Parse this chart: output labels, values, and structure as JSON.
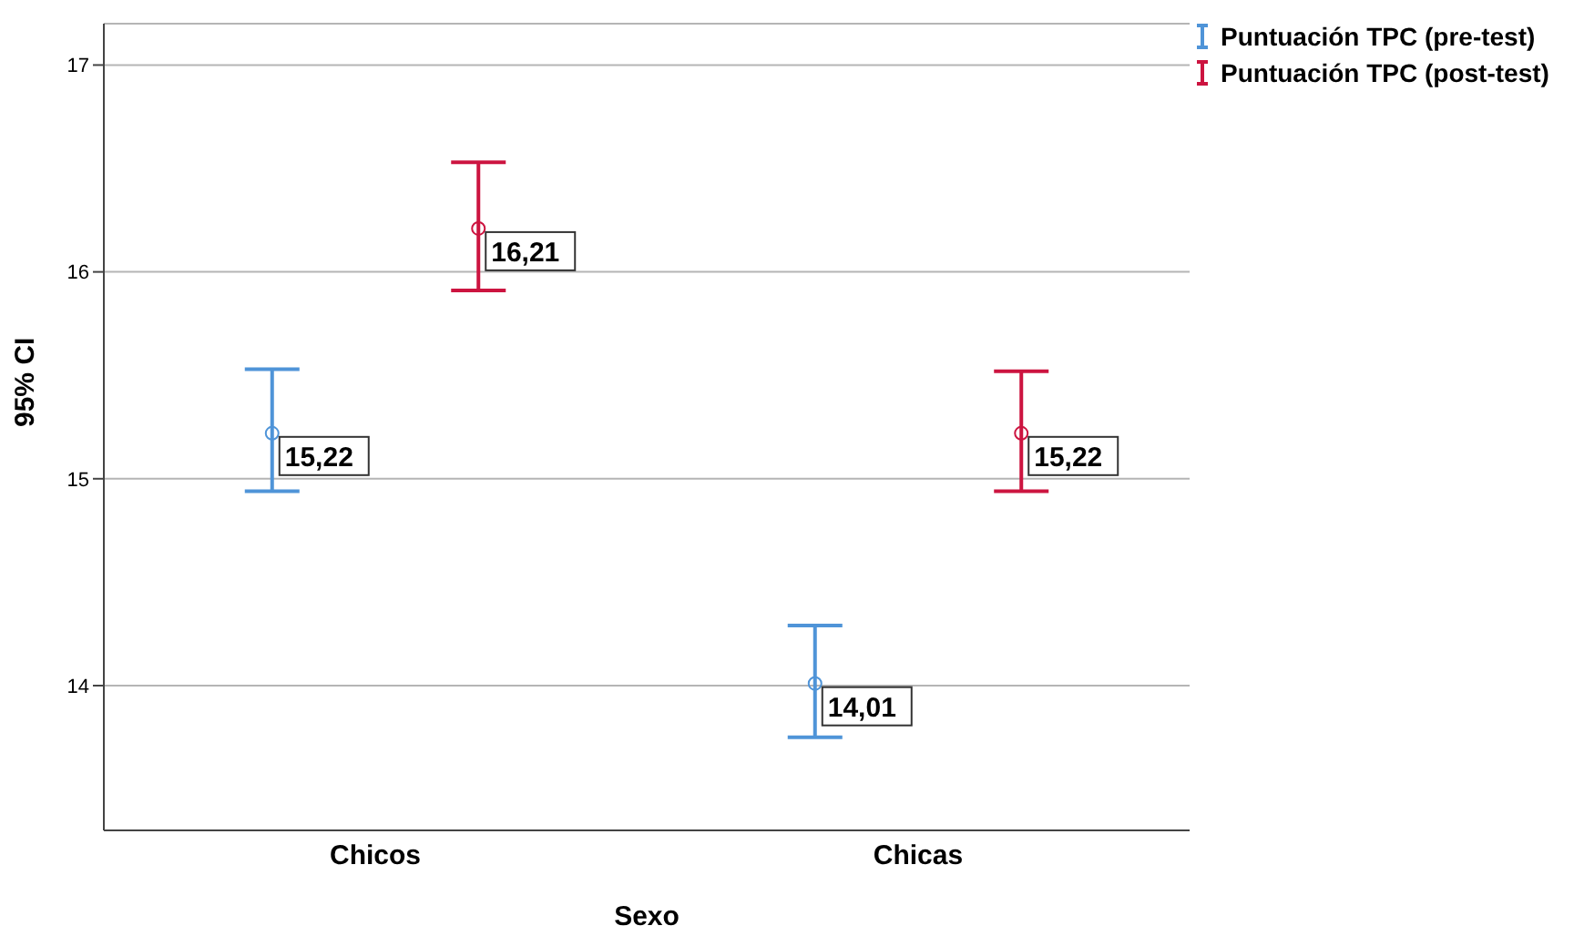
{
  "chart_data": {
    "type": "scatter",
    "xlabel": "Sexo",
    "ylabel": "95% CI",
    "categories": [
      "Chicos",
      "Chicas"
    ],
    "series": [
      {
        "name": "Puntuación TPC (pre-test)",
        "color": "#4f94d8",
        "values": [
          15.22,
          14.01
        ],
        "errors": [
          [
            14.94,
            15.53
          ],
          [
            13.75,
            14.29
          ]
        ],
        "value_labels": [
          "15,22",
          "14,01"
        ]
      },
      {
        "name": "Puntuación TPC (post-test)",
        "color": "#cc1440",
        "values": [
          16.21,
          15.22
        ],
        "errors": [
          [
            15.91,
            16.53
          ],
          [
            14.94,
            15.52
          ]
        ],
        "value_labels": [
          "16,21",
          "15,22"
        ]
      }
    ],
    "ylim": [
      13.3,
      17.2
    ],
    "yticks": [
      14,
      15,
      16,
      17
    ],
    "grid": "y",
    "legend": "top right",
    "marker": "circle"
  }
}
